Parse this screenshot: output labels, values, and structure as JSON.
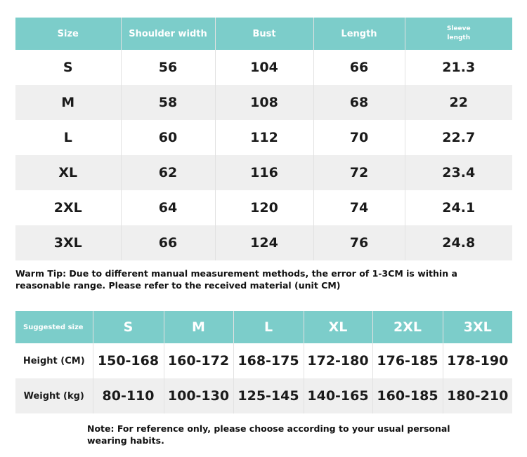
{
  "size_table": {
    "headers": [
      "Size",
      "Shoulder width",
      "Bust",
      "Length",
      "Sleeve length"
    ],
    "rows": [
      [
        "S",
        "56",
        "104",
        "66",
        "21.3"
      ],
      [
        "M",
        "58",
        "108",
        "68",
        "22"
      ],
      [
        "L",
        "60",
        "112",
        "70",
        "22.7"
      ],
      [
        "XL",
        "62",
        "116",
        "72",
        "23.4"
      ],
      [
        "2XL",
        "64",
        "120",
        "74",
        "24.1"
      ],
      [
        "3XL",
        "66",
        "124",
        "76",
        "24.8"
      ]
    ]
  },
  "warm_tip": "Warm Tip: Due to different manual measurement methods, the error of 1-3CM is within a reasonable range. Please refer to the received material (unit CM)",
  "suggest_table": {
    "headers": [
      "Suggested size",
      "S",
      "M",
      "L",
      "XL",
      "2XL",
      "3XL"
    ],
    "rows": [
      [
        "Height (CM)",
        "150-168",
        "160-172",
        "168-175",
        "172-180",
        "176-185",
        "178-190"
      ],
      [
        "Weight (kg)",
        "80-110",
        "100-130",
        "125-145",
        "140-165",
        "160-185",
        "180-210"
      ]
    ]
  },
  "note": "Note: For reference only, please choose according to your usual personal wearing habits.",
  "colors": {
    "header": "#7ccdca",
    "alt_row": "#efefef"
  }
}
